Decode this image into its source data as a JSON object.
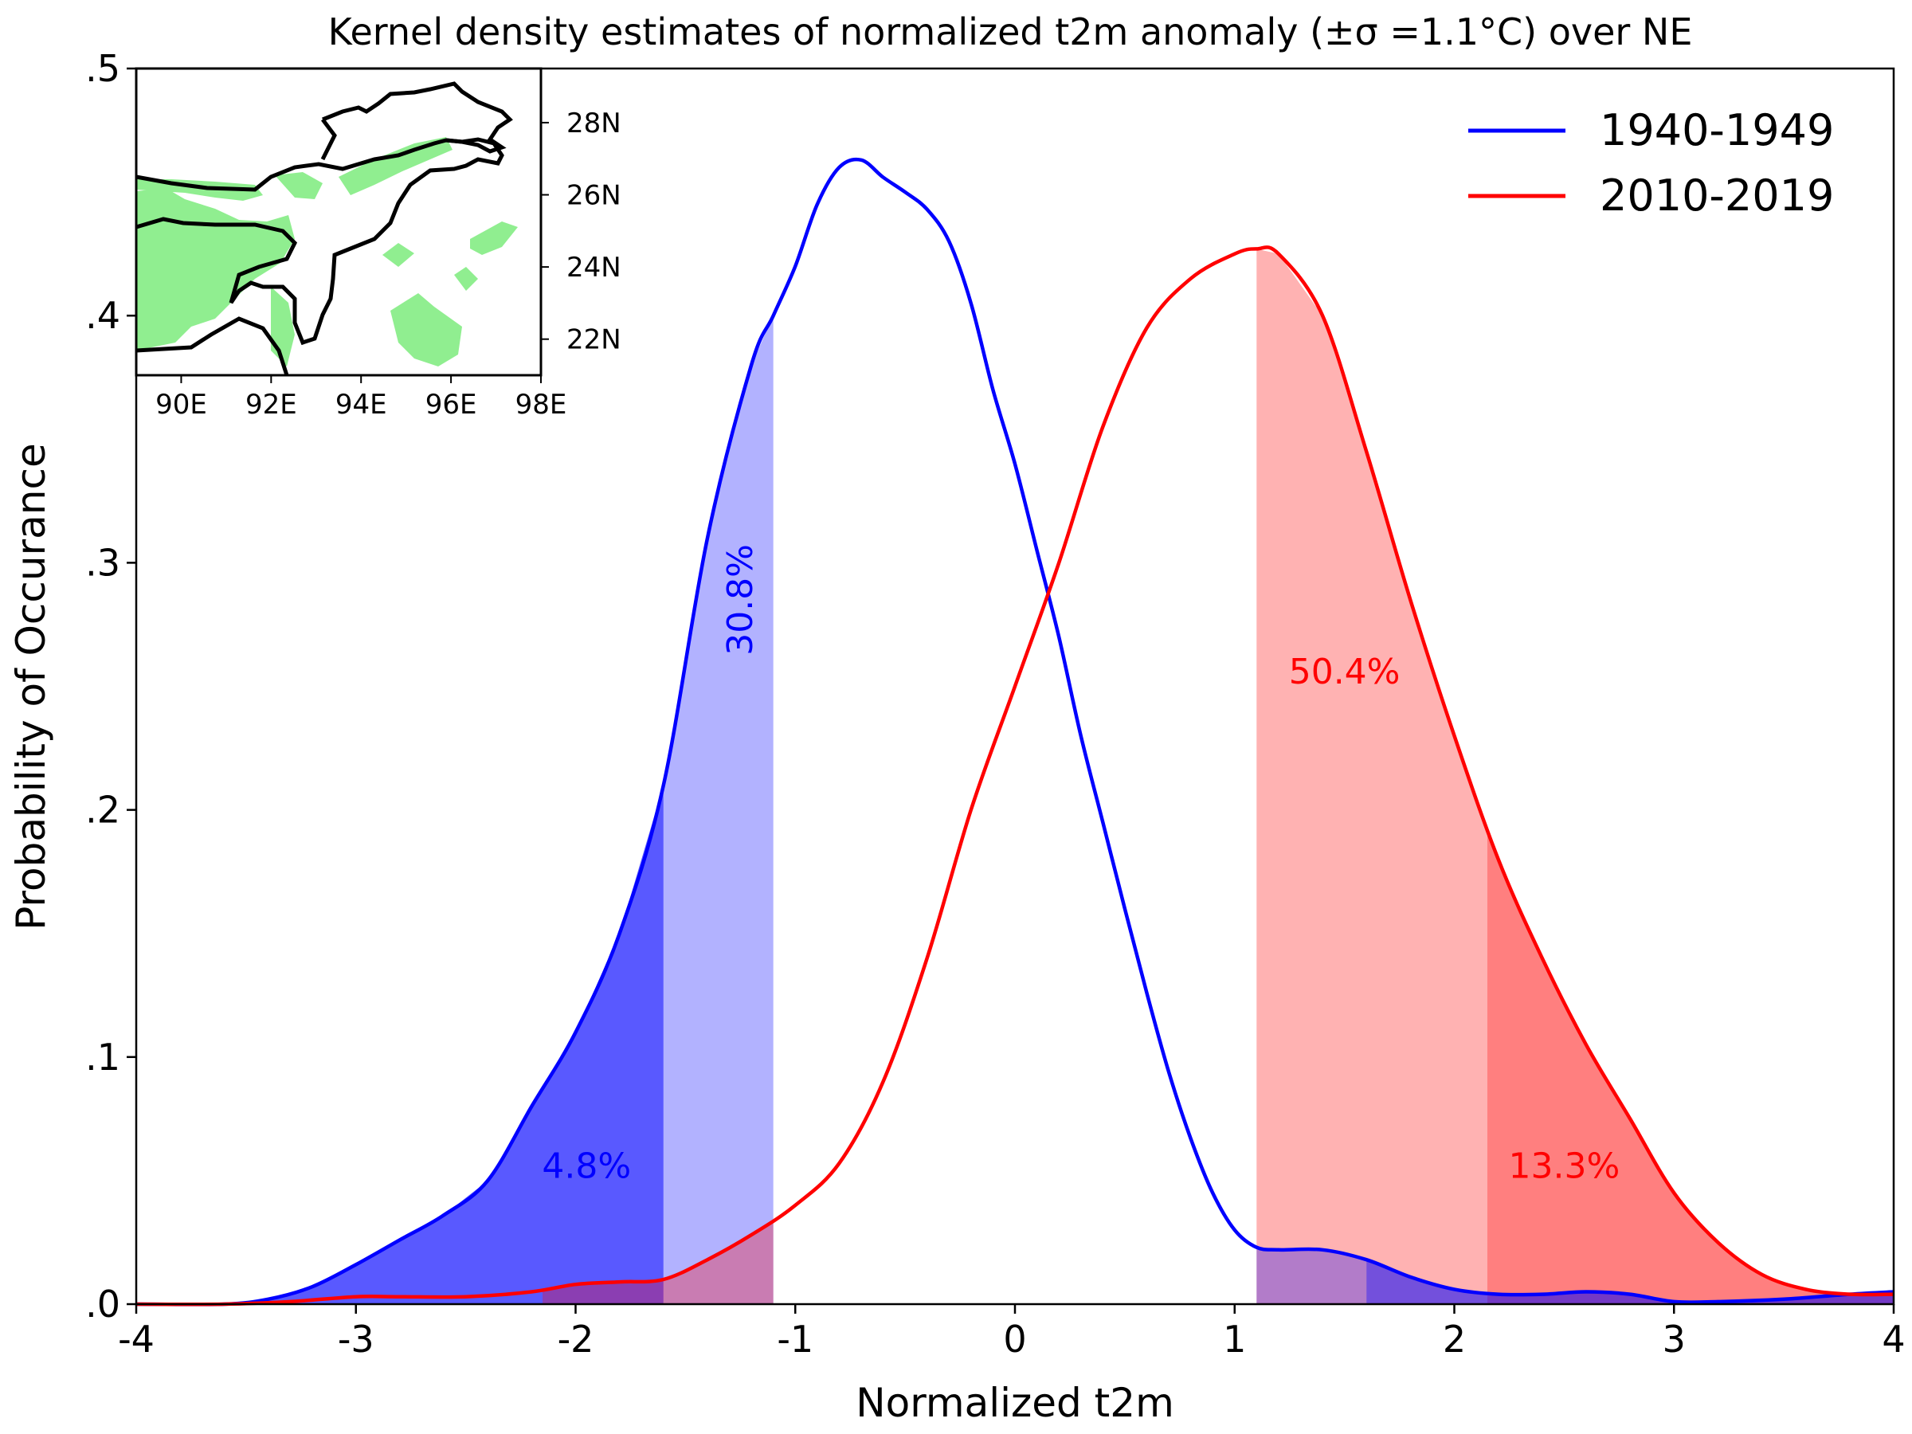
{
  "chart_data": {
    "type": "line",
    "title": "Kernel density estimates of normalized t2m anomaly (±σ =1.1°C)  over NE",
    "xlabel": "Normalized t2m",
    "ylabel": "Probability of Occurance",
    "xlim": [
      -4,
      4
    ],
    "ylim": [
      0,
      0.5
    ],
    "xticks": [
      -4,
      -3,
      -2,
      -1,
      0,
      1,
      2,
      3,
      4
    ],
    "xtick_labels": [
      "-4",
      "-3",
      "-2",
      "-1",
      "0",
      "1",
      "2",
      "3",
      "4"
    ],
    "yticks": [
      0,
      0.1,
      0.2,
      0.3,
      0.4,
      0.5
    ],
    "ytick_labels": [
      ".0",
      ".1",
      ".2",
      ".3",
      ".4",
      ".5"
    ],
    "legend_position": "top-right",
    "grid": false,
    "series": [
      {
        "name": "1940-1949",
        "color": "#0000ff",
        "x": [
          -4.0,
          -3.6,
          -3.4,
          -3.2,
          -3.0,
          -2.8,
          -2.6,
          -2.4,
          -2.2,
          -2.0,
          -1.8,
          -1.6,
          -1.4,
          -1.2,
          -1.1,
          -1.0,
          -0.9,
          -0.8,
          -0.7,
          -0.6,
          -0.5,
          -0.4,
          -0.3,
          -0.2,
          -0.1,
          0.0,
          0.1,
          0.2,
          0.3,
          0.4,
          0.5,
          0.6,
          0.7,
          0.8,
          0.9,
          1.0,
          1.1,
          1.2,
          1.4,
          1.6,
          1.8,
          2.0,
          2.2,
          2.4,
          2.6,
          2.8,
          3.0,
          3.2,
          3.5,
          3.8,
          4.0
        ],
        "y": [
          0.0,
          0.0,
          0.002,
          0.007,
          0.016,
          0.026,
          0.036,
          0.05,
          0.08,
          0.11,
          0.15,
          0.21,
          0.31,
          0.38,
          0.4,
          0.42,
          0.445,
          0.46,
          0.463,
          0.456,
          0.45,
          0.443,
          0.43,
          0.405,
          0.37,
          0.34,
          0.305,
          0.27,
          0.23,
          0.195,
          0.16,
          0.126,
          0.094,
          0.067,
          0.045,
          0.03,
          0.023,
          0.022,
          0.022,
          0.018,
          0.011,
          0.006,
          0.004,
          0.004,
          0.005,
          0.004,
          0.001,
          0.001,
          0.002,
          0.004,
          0.005
        ]
      },
      {
        "name": "2010-2019",
        "color": "#ff0000",
        "x": [
          -4.0,
          -3.6,
          -3.3,
          -3.0,
          -2.8,
          -2.5,
          -2.2,
          -2.0,
          -1.8,
          -1.6,
          -1.4,
          -1.2,
          -1.0,
          -0.8,
          -0.6,
          -0.4,
          -0.2,
          0.0,
          0.2,
          0.4,
          0.6,
          0.8,
          1.0,
          1.1,
          1.2,
          1.4,
          1.6,
          1.8,
          2.0,
          2.2,
          2.4,
          2.6,
          2.8,
          3.0,
          3.2,
          3.4,
          3.6,
          3.8,
          4.0
        ],
        "y": [
          0.0,
          0.0,
          0.001,
          0.003,
          0.003,
          0.003,
          0.005,
          0.008,
          0.009,
          0.01,
          0.018,
          0.028,
          0.04,
          0.057,
          0.09,
          0.14,
          0.2,
          0.25,
          0.3,
          0.355,
          0.395,
          0.415,
          0.425,
          0.427,
          0.425,
          0.4,
          0.345,
          0.285,
          0.23,
          0.18,
          0.14,
          0.105,
          0.075,
          0.045,
          0.025,
          0.012,
          0.006,
          0.004,
          0.004
        ]
      }
    ],
    "shaded_regions": [
      {
        "series": 0,
        "from": -4.0,
        "to": -1.6,
        "color": "#0000ff",
        "opacity": 0.65
      },
      {
        "series": 0,
        "from": -1.6,
        "to": -1.1,
        "color": "#0000ff",
        "opacity": 0.3
      },
      {
        "series": 1,
        "from": 1.1,
        "to": 2.15,
        "color": "#ff0000",
        "opacity": 0.3
      },
      {
        "series": 1,
        "from": 2.15,
        "to": 4.0,
        "color": "#ff0000",
        "opacity": 0.5
      },
      {
        "series": 1,
        "from": -2.15,
        "to": -1.1,
        "color": "#ff0000",
        "opacity": 0.3
      },
      {
        "series": 0,
        "from": 1.1,
        "to": 1.6,
        "color": "#0000ff",
        "opacity": 0.3
      },
      {
        "series": 0,
        "from": 1.6,
        "to": 4.0,
        "color": "#0000ff",
        "opacity": 0.55
      }
    ],
    "annotations": [
      {
        "text": "4.8%",
        "x": -1.95,
        "y": 0.055,
        "color": "#0000ff",
        "rotation": 0
      },
      {
        "text": "30.8%",
        "x": -1.24,
        "y": 0.285,
        "color": "#0000ff",
        "rotation": -90
      },
      {
        "text": "50.4%",
        "x": 1.5,
        "y": 0.255,
        "color": "#ff0000",
        "rotation": 0
      },
      {
        "text": "13.3%",
        "x": 2.5,
        "y": 0.055,
        "color": "#ff0000",
        "rotation": 0
      }
    ],
    "inset_map": {
      "xtick_labels": [
        "90E",
        "92E",
        "94E",
        "96E",
        "98E"
      ],
      "ytick_labels": [
        "28N",
        "26N",
        "24N",
        "22N"
      ],
      "xlim": [
        89,
        98
      ],
      "ylim": [
        21,
        29.5
      ],
      "fill_color": "#90ee90"
    }
  }
}
